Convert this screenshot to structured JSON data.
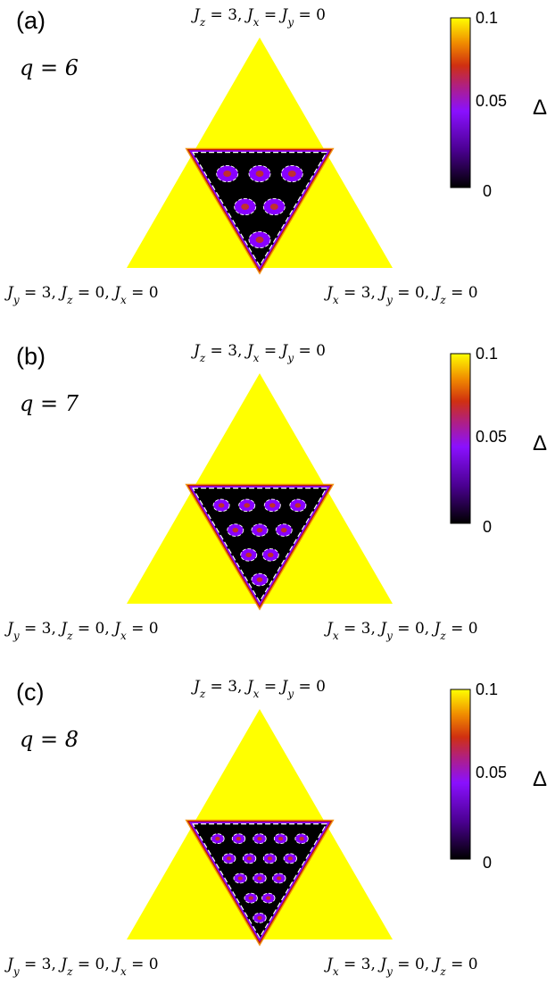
{
  "chart_data": [
    {
      "type": "heatmap",
      "panel_label": "(a)",
      "q_label": "q = 6",
      "q": 6,
      "top_vertex_label": "J_z = 3, J_x = J_y = 0",
      "left_vertex_label": "J_y = 3, J_z = 0, J_x = 0",
      "right_vertex_label": "J_x = 3, J_y = 0, J_z = 0",
      "colorbar": {
        "label": "Δ",
        "ticks": [
          "0.1",
          "0.05",
          "0"
        ],
        "range": [
          0,
          0.1
        ],
        "colormap": "black-purple-red-orange-yellow"
      }
    },
    {
      "type": "heatmap",
      "panel_label": "(b)",
      "q_label": "q = 7",
      "q": 7,
      "top_vertex_label": "J_z = 3, J_x = J_y = 0",
      "left_vertex_label": "J_y = 3, J_z = 0, J_x = 0",
      "right_vertex_label": "J_x = 3, J_y = 0, J_z = 0",
      "colorbar": {
        "label": "Δ",
        "ticks": [
          "0.1",
          "0.05",
          "0"
        ],
        "range": [
          0,
          0.1
        ],
        "colormap": "black-purple-red-orange-yellow"
      }
    },
    {
      "type": "heatmap",
      "panel_label": "(c)",
      "q_label": "q = 8",
      "q": 8,
      "top_vertex_label": "J_z = 3, J_x = J_y = 0",
      "left_vertex_label": "J_y = 3, J_z = 0, J_x = 0",
      "right_vertex_label": "J_x = 3, J_y = 0, J_z = 0",
      "colorbar": {
        "label": "Δ",
        "ticks": [
          "0.1",
          "0.05",
          "0"
        ],
        "range": [
          0,
          0.1
        ],
        "colormap": "black-purple-red-orange-yellow"
      }
    }
  ],
  "colors": {
    "gapped": "#ffff00",
    "edge_orange": "#f08a00",
    "edge_red": "#c02000",
    "purple": "#8800ff",
    "gapless": "#000000",
    "contour": "#ffffff"
  }
}
